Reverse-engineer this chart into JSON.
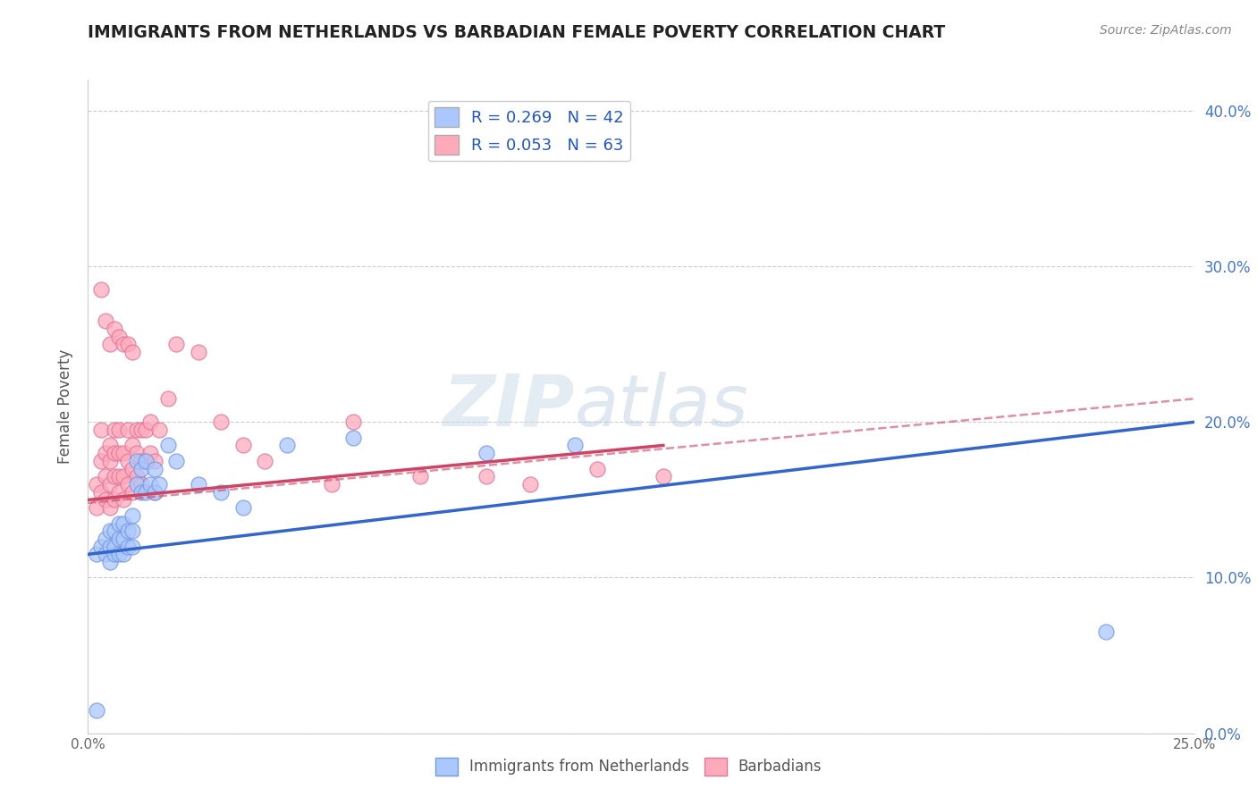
{
  "title": "IMMIGRANTS FROM NETHERLANDS VS BARBADIAN FEMALE POVERTY CORRELATION CHART",
  "source": "Source: ZipAtlas.com",
  "ylabel": "Female Poverty",
  "xlim": [
    0.0,
    0.25
  ],
  "ylim": [
    0.0,
    0.42
  ],
  "x_ticks": [
    0.0,
    0.05,
    0.1,
    0.15,
    0.2,
    0.25
  ],
  "x_tick_labels": [
    "0.0%",
    "",
    "",
    "",
    "",
    "25.0%"
  ],
  "y_ticks": [
    0.0,
    0.1,
    0.2,
    0.3,
    0.4
  ],
  "y_tick_labels": [
    "0.0%",
    "10.0%",
    "20.0%",
    "30.0%",
    "40.0%"
  ],
  "series1_color": "#aac8ff",
  "series1_edge": "#7799dd",
  "series2_color": "#ffaabb",
  "series2_edge": "#dd7799",
  "trendline1_color": "#3366cc",
  "trendline2_color": "#cc4466",
  "watermark_color": "#c8d8e8",
  "blue_points_x": [
    0.002,
    0.003,
    0.004,
    0.004,
    0.005,
    0.005,
    0.005,
    0.006,
    0.006,
    0.006,
    0.007,
    0.007,
    0.007,
    0.008,
    0.008,
    0.008,
    0.009,
    0.009,
    0.01,
    0.01,
    0.01,
    0.011,
    0.011,
    0.012,
    0.012,
    0.013,
    0.013,
    0.014,
    0.015,
    0.015,
    0.016,
    0.018,
    0.02,
    0.025,
    0.03,
    0.035,
    0.045,
    0.06,
    0.09,
    0.11,
    0.23,
    0.002
  ],
  "blue_points_y": [
    0.115,
    0.12,
    0.115,
    0.125,
    0.11,
    0.12,
    0.13,
    0.115,
    0.12,
    0.13,
    0.115,
    0.125,
    0.135,
    0.115,
    0.125,
    0.135,
    0.12,
    0.13,
    0.12,
    0.13,
    0.14,
    0.16,
    0.175,
    0.155,
    0.17,
    0.155,
    0.175,
    0.16,
    0.155,
    0.17,
    0.16,
    0.185,
    0.175,
    0.16,
    0.155,
    0.145,
    0.185,
    0.19,
    0.18,
    0.185,
    0.065,
    0.015
  ],
  "pink_points_x": [
    0.002,
    0.002,
    0.003,
    0.003,
    0.003,
    0.004,
    0.004,
    0.004,
    0.005,
    0.005,
    0.005,
    0.005,
    0.006,
    0.006,
    0.006,
    0.006,
    0.007,
    0.007,
    0.007,
    0.007,
    0.008,
    0.008,
    0.008,
    0.009,
    0.009,
    0.009,
    0.01,
    0.01,
    0.01,
    0.011,
    0.011,
    0.011,
    0.012,
    0.012,
    0.012,
    0.013,
    0.013,
    0.014,
    0.014,
    0.015,
    0.015,
    0.016,
    0.018,
    0.02,
    0.025,
    0.03,
    0.035,
    0.04,
    0.055,
    0.06,
    0.075,
    0.09,
    0.1,
    0.115,
    0.13,
    0.003,
    0.004,
    0.005,
    0.006,
    0.007,
    0.008,
    0.009,
    0.01
  ],
  "pink_points_y": [
    0.145,
    0.16,
    0.155,
    0.175,
    0.195,
    0.15,
    0.165,
    0.18,
    0.145,
    0.16,
    0.175,
    0.185,
    0.15,
    0.165,
    0.18,
    0.195,
    0.155,
    0.165,
    0.18,
    0.195,
    0.15,
    0.165,
    0.18,
    0.16,
    0.175,
    0.195,
    0.155,
    0.17,
    0.185,
    0.165,
    0.18,
    0.195,
    0.16,
    0.175,
    0.195,
    0.175,
    0.195,
    0.18,
    0.2,
    0.155,
    0.175,
    0.195,
    0.215,
    0.25,
    0.245,
    0.2,
    0.185,
    0.175,
    0.16,
    0.2,
    0.165,
    0.165,
    0.16,
    0.17,
    0.165,
    0.285,
    0.265,
    0.25,
    0.26,
    0.255,
    0.25,
    0.25,
    0.245
  ],
  "blue_trend_x": [
    0.0,
    0.25
  ],
  "blue_trend_y": [
    0.115,
    0.2
  ],
  "pink_trend_x": [
    0.0,
    0.13
  ],
  "pink_trend_y": [
    0.15,
    0.185
  ]
}
